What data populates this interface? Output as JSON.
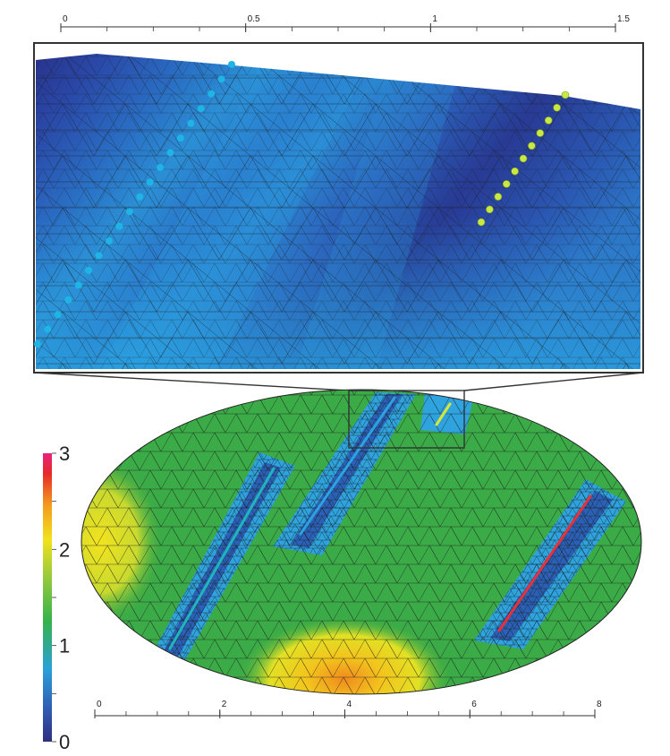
{
  "top_axis": {
    "ticks": [
      {
        "value": 0,
        "label": "0"
      },
      {
        "value": 0.5,
        "label": "0.5"
      },
      {
        "value": 1,
        "label": "1"
      },
      {
        "value": 1.5,
        "label": "1.5"
      }
    ],
    "range": [
      0,
      1.5
    ]
  },
  "bottom_axis": {
    "ticks": [
      {
        "value": 0,
        "label": "0"
      },
      {
        "value": 2,
        "label": "2"
      },
      {
        "value": 4,
        "label": "4"
      },
      {
        "value": 6,
        "label": "6"
      },
      {
        "value": 8,
        "label": "8"
      }
    ],
    "range": [
      0,
      8
    ]
  },
  "colorbar": {
    "range": [
      0,
      3
    ],
    "ticks": [
      {
        "value": 3,
        "label": "3"
      },
      {
        "value": 2,
        "label": "2"
      },
      {
        "value": 1,
        "label": "1"
      },
      {
        "value": 0,
        "label": "0"
      }
    ],
    "colors": [
      "#2e2f80",
      "#2f5fb5",
      "#2aa0d8",
      "#35b34a",
      "#9ccb3b",
      "#f2e21c",
      "#f39b1e",
      "#e62a28",
      "#e8227c"
    ]
  },
  "colors": {
    "background": "#ffffff",
    "mesh_line": "#1a1a1a",
    "crack_cyan": "#1fb5bf",
    "crack_blue": "#2aa3e0",
    "crack_yellow": "#d8e63a",
    "crack_red": "#e8303a",
    "dot_blue": "#1eb4e6",
    "dot_yellow": "#c9e843"
  }
}
